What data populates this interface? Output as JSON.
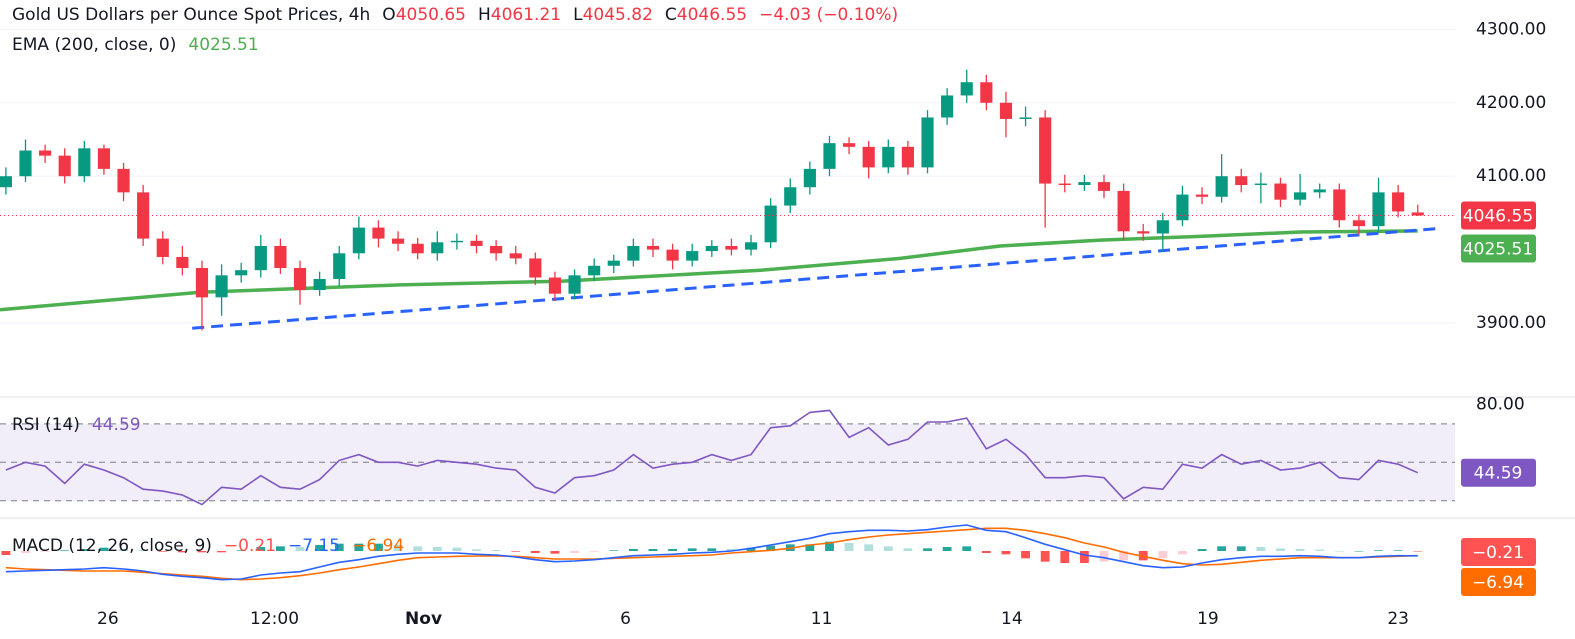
{
  "chart_data": [
    {
      "type": "candlestick",
      "title": "Gold US Dollars per Ounce Spot Prices, 4h",
      "ohlc_labels": [
        "O",
        "H",
        "L",
        "C"
      ],
      "change": {
        "value": -4.03,
        "label": "−4.03 (−0.10%)"
      },
      "up_color": "#089981",
      "down_color": "#f23645",
      "xlim": [
        -0.3,
        73.9
      ],
      "ylim": [
        3802,
        4340
      ],
      "yticks": [
        {
          "value": 4300,
          "label": "4300.00"
        },
        {
          "value": 4200,
          "label": "4200.00"
        },
        {
          "value": 4100,
          "label": "4100.00"
        },
        {
          "value": 3900,
          "label": "3900.00"
        }
      ],
      "grid": true,
      "open": [
        4085,
        4100,
        4135,
        4128,
        4100,
        4138,
        4110,
        4078,
        4015,
        3990,
        3975,
        3935,
        3965,
        3972,
        4005,
        3975,
        3945,
        3960,
        3995,
        4030,
        4015,
        4008,
        3995,
        4010,
        4012,
        4005,
        3995,
        3988,
        3962,
        3940,
        3965,
        3978,
        3985,
        4005,
        4000,
        3985,
        3998,
        4005,
        4000,
        4010,
        4060,
        4085,
        4110,
        4145,
        4140,
        4112,
        4140,
        4112,
        4180,
        4210,
        4228,
        4200,
        4178,
        4180,
        4090,
        4088,
        4092,
        4080,
        4025,
        4022,
        4040,
        4075,
        4072,
        4100,
        4088,
        4090,
        4068,
        4078,
        4082,
        4040,
        4032,
        4078,
        4050.65
      ],
      "high": [
        4112,
        4150,
        4143,
        4138,
        4148,
        4143,
        4118,
        4088,
        4025,
        4005,
        3985,
        3980,
        3982,
        4020,
        4015,
        3985,
        3970,
        4005,
        4045,
        4040,
        4025,
        4016,
        4025,
        4022,
        4020,
        4013,
        4005,
        3996,
        3970,
        3973,
        3988,
        3993,
        4015,
        4015,
        4008,
        4008,
        4013,
        4015,
        4020,
        4070,
        4097,
        4120,
        4155,
        4153,
        4148,
        4150,
        4148,
        4190,
        4220,
        4245,
        4238,
        4215,
        4195,
        4190,
        4102,
        4102,
        4102,
        4090,
        4035,
        4050,
        4087,
        4085,
        4130,
        4110,
        4105,
        4098,
        4103,
        4090,
        4090,
        4048,
        4098,
        4088,
        4061.21
      ],
      "low": [
        4075,
        4092,
        4118,
        4090,
        4092,
        4102,
        4066,
        4005,
        3980,
        3965,
        3890,
        3910,
        3955,
        3962,
        3967,
        3925,
        3937,
        3950,
        3987,
        4003,
        3998,
        3987,
        3985,
        4000,
        3995,
        3985,
        3980,
        3952,
        3930,
        3932,
        3957,
        3968,
        3977,
        3990,
        3973,
        3977,
        3990,
        3992,
        3992,
        4002,
        4050,
        4075,
        4100,
        4130,
        4097,
        4104,
        4102,
        4104,
        4170,
        4200,
        4190,
        4153,
        4168,
        4030,
        4078,
        4080,
        4070,
        4013,
        4012,
        3997,
        4032,
        4062,
        4064,
        4078,
        4063,
        4058,
        4060,
        4070,
        4030,
        4020,
        4024,
        4044,
        4045.82
      ],
      "close": [
        4100,
        4135,
        4128,
        4100,
        4138,
        4110,
        4078,
        4015,
        3990,
        3975,
        3935,
        3965,
        3972,
        4005,
        3975,
        3945,
        3960,
        3995,
        4030,
        4015,
        4008,
        3995,
        4010,
        4012,
        4005,
        3995,
        3988,
        3962,
        3940,
        3965,
        3978,
        3985,
        4005,
        4000,
        3985,
        3998,
        4005,
        4000,
        4010,
        4060,
        4085,
        4110,
        4145,
        4140,
        4112,
        4140,
        4112,
        4180,
        4210,
        4228,
        4200,
        4178,
        4180,
        4090,
        4088,
        4092,
        4080,
        4025,
        4022,
        4040,
        4075,
        4072,
        4100,
        4088,
        4090,
        4068,
        4078,
        4082,
        4040,
        4032,
        4078,
        4052,
        4046.55
      ],
      "ema": {
        "name": "EMA (200, close, 0)",
        "color": "#4caf50",
        "x": [
          -0.3,
          9.9,
          20.1,
          28.3,
          38.5,
          45.6,
          50.7,
          55.8,
          60.9,
          66.0,
          72.0
        ],
        "values": [
          3918,
          3942,
          3952,
          3957,
          3972,
          3988,
          4005,
          4013,
          4018,
          4024,
          4025.51
        ]
      },
      "trendline": {
        "color": "#2962ff",
        "x": [
          9.5,
          73.2
        ],
        "values": [
          3893,
          4029
        ]
      }
    },
    {
      "type": "rsi",
      "title": "RSI (14)",
      "color": "#7e57c2",
      "xlim": [
        -0.3,
        73.9
      ],
      "ylim": [
        21,
        84
      ],
      "yticks": [
        {
          "value": 80,
          "label": "80.00"
        }
      ],
      "levels": [
        70,
        50,
        30
      ],
      "values": [
        46,
        50,
        48,
        39,
        49,
        46,
        42,
        36,
        35,
        33,
        28,
        37,
        36,
        43,
        37,
        36,
        41,
        51,
        54,
        50,
        50,
        48,
        51,
        50,
        49,
        47,
        46,
        37,
        34,
        42,
        43,
        46,
        54,
        47,
        49,
        50,
        54,
        51,
        54,
        68,
        69,
        76,
        77,
        63,
        68,
        59,
        62,
        71,
        71,
        73,
        57,
        62,
        54,
        42,
        42,
        43,
        42,
        31,
        37,
        36,
        49,
        47,
        54,
        49,
        51,
        46,
        47,
        50,
        42,
        41,
        51,
        49,
        44.59
      ]
    },
    {
      "type": "macd",
      "title": "MACD (12, 26, close, 9)",
      "xlim": [
        -0.3,
        73.9
      ],
      "ylim": [
        -73.5,
        49.5
      ],
      "xticks": [
        {
          "value": 5.2,
          "label": "26"
        },
        {
          "value": 13.7,
          "label": "12:00"
        },
        {
          "value": 21.3,
          "label": "Nov"
        },
        {
          "value": 31.6,
          "label": "6"
        },
        {
          "value": 41.6,
          "label": "11"
        },
        {
          "value": 51.3,
          "label": "14"
        },
        {
          "value": 61.3,
          "label": "19"
        },
        {
          "value": 71.0,
          "label": "23"
        }
      ],
      "histogram": {
        "colors": [
          "#26a69a",
          "#b2dfdb",
          "#ff5252",
          "#ffcdd2"
        ],
        "value_label": "−0.21",
        "values": [
          -6,
          -3,
          -1,
          1,
          3,
          5,
          3,
          2,
          -1,
          -2,
          -2,
          -2,
          1,
          6,
          7,
          6,
          9,
          11,
          11,
          11,
          9,
          7,
          6,
          5,
          2.5,
          1.5,
          -1,
          -3,
          -4,
          -3,
          -1,
          1,
          3,
          3,
          3,
          4,
          4,
          3,
          5,
          8,
          10,
          10,
          14,
          12,
          10,
          7,
          4,
          4,
          6,
          7,
          -3,
          -5,
          -11,
          -16,
          -18,
          -18,
          -16,
          -14,
          -14,
          -11,
          -5,
          3,
          7,
          7,
          6,
          4,
          3,
          2,
          0,
          0,
          1,
          1,
          -0.21
        ]
      },
      "macd": {
        "color": "#2962ff",
        "value_label": "−7.15",
        "values": [
          -31,
          -30,
          -29,
          -28,
          -27,
          -25,
          -27,
          -30,
          -35,
          -38,
          -40,
          -43,
          -42,
          -36,
          -33,
          -31,
          -24,
          -17,
          -13,
          -8,
          -5,
          -3,
          -3,
          -3,
          -5,
          -6,
          -9,
          -13,
          -16,
          -15,
          -13,
          -10,
          -7,
          -6,
          -5,
          -3,
          -2,
          0,
          4,
          9,
          14,
          19,
          26,
          29,
          31,
          31,
          30,
          32,
          36,
          39,
          31,
          29,
          20,
          10,
          2,
          -6,
          -10,
          -16,
          -22,
          -25,
          -24,
          -18,
          -13,
          -10,
          -8,
          -8,
          -7,
          -8,
          -10,
          -10,
          -8,
          -7,
          -7.15
        ]
      },
      "signal": {
        "color": "#ff6d00",
        "value_label": "−6.94",
        "values": [
          -25,
          -27,
          -28,
          -29,
          -30,
          -30,
          -30,
          -32,
          -34,
          -36,
          -38,
          -41,
          -43,
          -42,
          -40,
          -37,
          -33,
          -28,
          -24,
          -19,
          -14,
          -10,
          -9,
          -8,
          -7.5,
          -7.5,
          -8,
          -10,
          -12,
          -12,
          -12,
          -11,
          -10,
          -9,
          -8,
          -7,
          -6,
          -3,
          -1,
          1,
          4,
          9,
          12,
          17,
          21,
          24,
          26,
          28,
          30,
          32,
          34,
          34,
          31,
          26,
          20,
          12,
          6,
          -2,
          -8,
          -14,
          -19,
          -21,
          -20,
          -17,
          -14,
          -12,
          -10,
          -10,
          -10,
          -10,
          -9,
          -8,
          -6.94
        ]
      }
    }
  ]
}
